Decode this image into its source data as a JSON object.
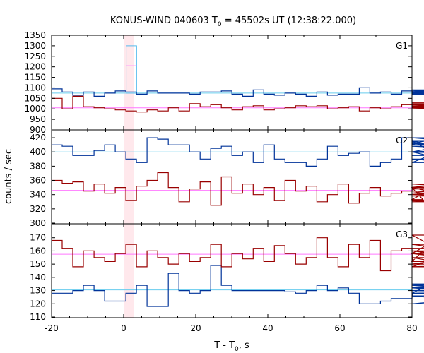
{
  "title": "KONUS-WIND 040603 T",
  "title_sub": "0",
  "title_rest": " = 45502s UT (12:38:22.000)",
  "ylabel": "counts / sec",
  "xlabel_main": "T - T",
  "xlabel_sub": "0",
  "xlabel_rest": ", s",
  "colors": {
    "soft": "#003399",
    "hard": "#990000",
    "soft_bg": "#66ccee",
    "hard_bg": "#ff77ff",
    "highlight": "#ffe8ec",
    "spike": "#55bbee"
  },
  "chart_data": {
    "type": "line",
    "x_axis": {
      "range": [
        -20,
        80
      ],
      "ticks": [
        -20,
        0,
        20,
        40,
        60,
        80
      ]
    },
    "bin_width": 2.944,
    "highlight_interval": [
      0.0,
      2.944
    ],
    "panels": [
      {
        "label": "G1",
        "ylim": [
          900,
          1350
        ],
        "yticks": [
          900,
          950,
          1000,
          1050,
          1100,
          1150,
          1200,
          1250,
          1300,
          1350
        ],
        "background_levels": [
          1075,
          1005
        ],
        "spike": {
          "x0": 0.7,
          "x1": 3.6,
          "value": 1300,
          "mid": 1205
        },
        "series": [
          {
            "role": "soft",
            "values": [
              1095,
              1080,
              1065,
              1080,
              1060,
              1075,
              1085,
              1080,
              1070,
              1085,
              1075,
              1075,
              1075,
              1070,
              1080,
              1080,
              1085,
              1070,
              1060,
              1090,
              1070,
              1065,
              1075,
              1070,
              1060,
              1080,
              1065,
              1070,
              1070,
              1100,
              1075,
              1080,
              1070,
              1085,
              1070,
              1080,
              1075,
              1085,
              1075,
              1090,
              1070,
              1085,
              1085,
              1070,
              1090,
              1080,
              1075,
              1080,
              1085,
              1090
            ]
          },
          {
            "role": "hard",
            "values": [
              1050,
              1000,
              1060,
              1010,
              1005,
              1000,
              995,
              990,
              985,
              995,
              990,
              1005,
              990,
              1025,
              1010,
              1020,
              1005,
              995,
              1010,
              1015,
              995,
              1000,
              1005,
              1015,
              1010,
              1015,
              1000,
              1005,
              1010,
              990,
              1005,
              1000,
              1010,
              1020,
              1005,
              1010,
              1020,
              1015,
              1005,
              1005,
              1000,
              1005,
              1010,
              1025,
              1000,
              1015,
              1005,
              1025,
              1010,
              1030
            ]
          }
        ]
      },
      {
        "label": "G2",
        "ylim": [
          300,
          430
        ],
        "yticks": [
          300,
          320,
          340,
          360,
          380,
          400,
          420
        ],
        "background_levels": [
          400,
          346
        ],
        "series": [
          {
            "role": "soft",
            "values": [
              410,
              408,
              395,
              395,
              402,
              410,
              400,
              390,
              385,
              420,
              418,
              410,
              410,
              400,
              390,
              405,
              408,
              395,
              400,
              385,
              410,
              390,
              385,
              385,
              380,
              390,
              408,
              395,
              398,
              400,
              380,
              385,
              390,
              420,
              410,
              415,
              400,
              390,
              385,
              415,
              400,
              420,
              410,
              412,
              400,
              408,
              400,
              390,
              385,
              395
            ]
          },
          {
            "role": "hard",
            "values": [
              360,
              356,
              358,
              345,
              355,
              342,
              350,
              332,
              352,
              360,
              371,
              350,
              330,
              348,
              358,
              325,
              365,
              342,
              355,
              340,
              350,
              332,
              360,
              345,
              352,
              330,
              340,
              355,
              328,
              342,
              350,
              338,
              342,
              345,
              350,
              333,
              350,
              340,
              345,
              342,
              355,
              348,
              352,
              338,
              345,
              340,
              332,
              330,
              338,
              340
            ]
          }
        ]
      },
      {
        "label": "G3",
        "ylim": [
          110,
          180
        ],
        "yticks": [
          110,
          120,
          130,
          140,
          150,
          160,
          170
        ],
        "background_levels": [
          130.5,
          157.5
        ],
        "series": [
          {
            "role": "soft",
            "values": [
              128,
              128,
              130,
              134,
              130,
              122,
              122,
              128,
              134,
              118,
              118,
              143,
              130,
              128,
              130,
              149,
              134,
              130,
              130,
              130,
              130,
              130,
              129,
              128,
              130,
              134,
              130,
              132,
              128,
              120,
              120,
              122,
              124,
              124,
              128,
              132,
              134,
              132,
              134,
              135,
              132,
              128,
              126,
              120,
              120,
              128,
              130,
              132,
              130,
              128
            ]
          },
          {
            "role": "hard",
            "values": [
              168,
              162,
              148,
              160,
              155,
              152,
              158,
              165,
              148,
              160,
              155,
              150,
              158,
              152,
              155,
              165,
              148,
              158,
              154,
              162,
              152,
              164,
              158,
              150,
              155,
              170,
              155,
              148,
              165,
              155,
              168,
              145,
              160,
              162,
              152,
              160,
              158,
              172,
              155,
              148,
              165,
              158,
              150,
              160,
              158,
              150,
              162,
              160,
              148,
              152
            ]
          }
        ]
      }
    ]
  }
}
